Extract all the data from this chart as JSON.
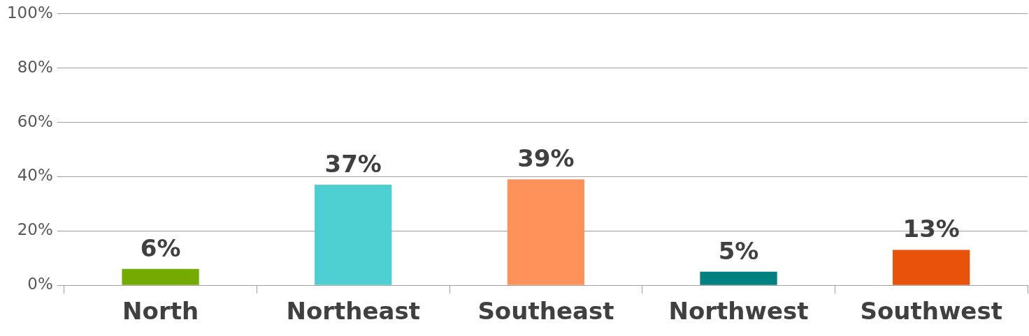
{
  "chart_data": {
    "type": "bar",
    "categories": [
      "North",
      "Northeast",
      "Southeast",
      "Northwest",
      "Southwest"
    ],
    "values": [
      6,
      37,
      39,
      5,
      13
    ],
    "colors": [
      "#73ab00",
      "#4dcfd1",
      "#ff915a",
      "#008080",
      "#e8520a"
    ],
    "value_labels": [
      "6%",
      "37%",
      "39%",
      "5%",
      "13%"
    ],
    "ylim": [
      0,
      100
    ],
    "yticks": [
      {
        "value": 0,
        "label": "0%"
      },
      {
        "value": 20,
        "label": "20%"
      },
      {
        "value": 40,
        "label": "40%"
      },
      {
        "value": 60,
        "label": "60%"
      },
      {
        "value": 80,
        "label": "80%"
      },
      {
        "value": 100,
        "label": "100%"
      }
    ],
    "grid": "y"
  }
}
